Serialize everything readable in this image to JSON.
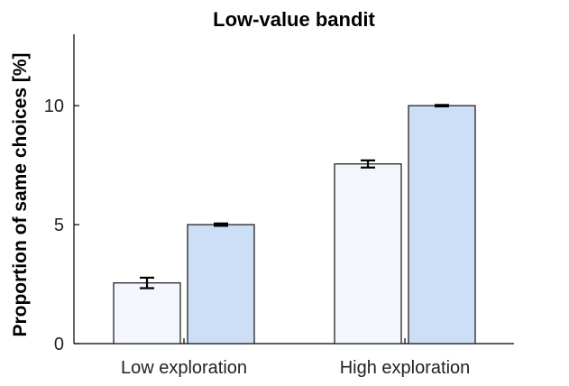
{
  "chart_data": {
    "type": "bar",
    "title": "Low-value bandit",
    "ylabel": "Proportion of same choices [%]",
    "xlabel": "",
    "categories": [
      "Low exploration",
      "High exploration"
    ],
    "ylim": [
      0,
      13
    ],
    "yticks": [
      0,
      5,
      10
    ],
    "grid": false,
    "series": [
      {
        "values": [
          2.55,
          7.55
        ],
        "errors": [
          0.22,
          0.15
        ],
        "color": "#f3f7fd"
      },
      {
        "values": [
          5.0,
          10.0
        ],
        "errors": [
          0.05,
          0.03
        ],
        "color": "#cddff6"
      }
    ]
  }
}
